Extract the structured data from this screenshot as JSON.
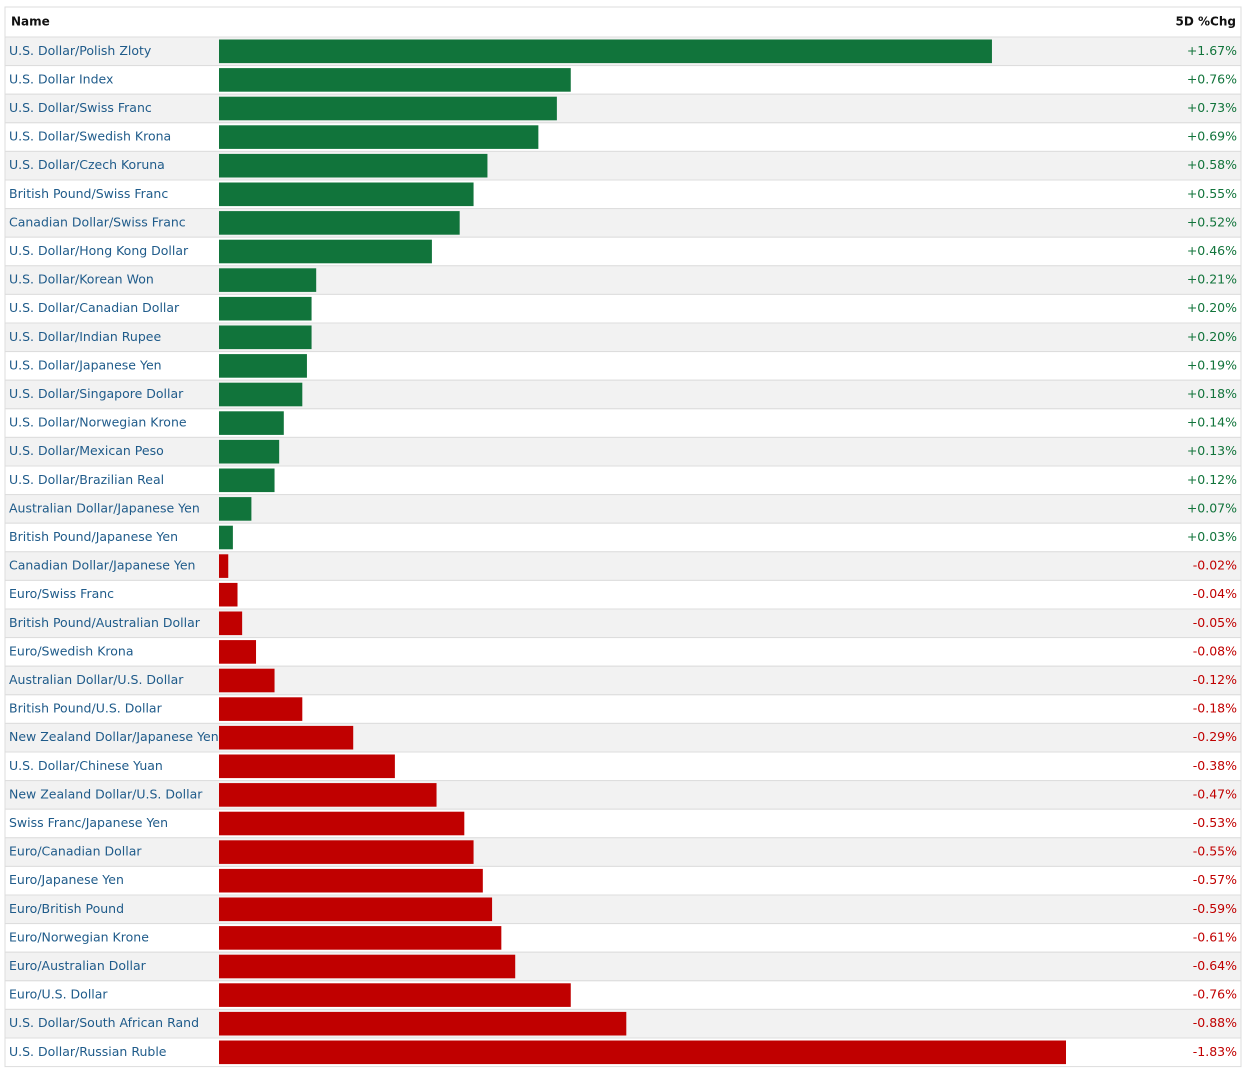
{
  "chart_data": {
    "type": "bar",
    "columns": [
      "Name",
      "5D %Chg"
    ],
    "categories": [
      "U.S. Dollar/Polish Zloty",
      "U.S. Dollar Index",
      "U.S. Dollar/Swiss Franc",
      "U.S. Dollar/Swedish Krona",
      "U.S. Dollar/Czech Koruna",
      "British Pound/Swiss Franc",
      "Canadian Dollar/Swiss Franc",
      "U.S. Dollar/Hong Kong Dollar",
      "U.S. Dollar/Korean Won",
      "U.S. Dollar/Canadian Dollar",
      "U.S. Dollar/Indian Rupee",
      "U.S. Dollar/Japanese Yen",
      "U.S. Dollar/Singapore Dollar",
      "U.S. Dollar/Norwegian Krone",
      "U.S. Dollar/Mexican Peso",
      "U.S. Dollar/Brazilian Real",
      "Australian Dollar/Japanese Yen",
      "British Pound/Japanese Yen",
      "Canadian Dollar/Japanese Yen",
      "Euro/Swiss Franc",
      "British Pound/Australian Dollar",
      "Euro/Swedish Krona",
      "Australian Dollar/U.S. Dollar",
      "British Pound/U.S. Dollar",
      "New Zealand Dollar/Japanese Yen",
      "U.S. Dollar/Chinese Yuan",
      "New Zealand Dollar/U.S. Dollar",
      "Swiss Franc/Japanese Yen",
      "Euro/Canadian Dollar",
      "Euro/Japanese Yen",
      "Euro/British Pound",
      "Euro/Norwegian Krone",
      "Euro/Australian Dollar",
      "Euro/U.S. Dollar",
      "U.S. Dollar/South African Rand",
      "U.S. Dollar/Russian Ruble"
    ],
    "values": [
      1.67,
      0.76,
      0.73,
      0.69,
      0.58,
      0.55,
      0.52,
      0.46,
      0.21,
      0.2,
      0.2,
      0.19,
      0.18,
      0.14,
      0.13,
      0.12,
      0.07,
      0.03,
      -0.02,
      -0.04,
      -0.05,
      -0.08,
      -0.12,
      -0.18,
      -0.29,
      -0.38,
      -0.47,
      -0.53,
      -0.55,
      -0.57,
      -0.59,
      -0.61,
      -0.64,
      -0.76,
      -0.88,
      -1.83
    ],
    "value_labels": [
      "+1.67%",
      "+0.76%",
      "+0.73%",
      "+0.69%",
      "+0.58%",
      "+0.55%",
      "+0.52%",
      "+0.46%",
      "+0.21%",
      "+0.20%",
      "+0.20%",
      "+0.19%",
      "+0.18%",
      "+0.14%",
      "+0.13%",
      "+0.12%",
      "+0.07%",
      "+0.03%",
      "-0.02%",
      "-0.04%",
      "-0.05%",
      "-0.08%",
      "-0.12%",
      "-0.18%",
      "-0.29%",
      "-0.38%",
      "-0.47%",
      "-0.53%",
      "-0.55%",
      "-0.57%",
      "-0.59%",
      "-0.61%",
      "-0.64%",
      "-0.76%",
      "-0.88%",
      "-1.83%"
    ],
    "positive_color": "#11743b",
    "negative_color": "#c00000"
  }
}
